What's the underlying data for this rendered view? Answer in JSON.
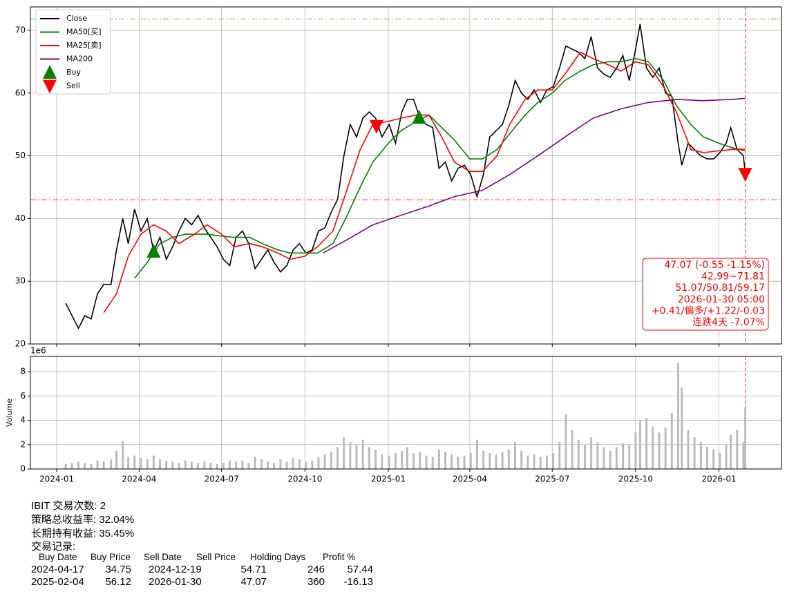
{
  "chart_data": [
    {
      "type": "line",
      "xlim": [
        "2023-12-03",
        "2026-03-11"
      ],
      "ylim": [
        20,
        73.74
      ],
      "yticks": [
        20,
        30,
        40,
        50,
        60,
        70
      ],
      "grid": true,
      "legend": "upper left",
      "series": [
        {
          "name": "Close",
          "color": "#000000",
          "style": "line",
          "x": [
            "2024-01-11",
            "2024-01-18",
            "2024-01-25",
            "2024-02-01",
            "2024-02-08",
            "2024-02-15",
            "2024-02-22",
            "2024-03-01",
            "2024-03-07",
            "2024-03-14",
            "2024-03-20",
            "2024-03-27",
            "2024-04-03",
            "2024-04-10",
            "2024-04-17",
            "2024-04-24",
            "2024-05-01",
            "2024-05-08",
            "2024-05-15",
            "2024-05-22",
            "2024-05-29",
            "2024-06-05",
            "2024-06-12",
            "2024-06-19",
            "2024-06-26",
            "2024-07-03",
            "2024-07-10",
            "2024-07-17",
            "2024-07-24",
            "2024-07-31",
            "2024-08-07",
            "2024-08-14",
            "2024-08-21",
            "2024-08-28",
            "2024-09-04",
            "2024-09-11",
            "2024-09-18",
            "2024-09-25",
            "2024-10-02",
            "2024-10-09",
            "2024-10-16",
            "2024-10-23",
            "2024-10-30",
            "2024-11-06",
            "2024-11-13",
            "2024-11-20",
            "2024-11-27",
            "2024-12-04",
            "2024-12-11",
            "2024-12-18",
            "2024-12-25",
            "2025-01-02",
            "2025-01-09",
            "2025-01-16",
            "2025-01-22",
            "2025-01-29",
            "2025-02-05",
            "2025-02-12",
            "2025-02-19",
            "2025-02-26",
            "2025-03-05",
            "2025-03-12",
            "2025-03-19",
            "2025-03-26",
            "2025-04-02",
            "2025-04-09",
            "2025-04-16",
            "2025-04-23",
            "2025-04-30",
            "2025-05-07",
            "2025-05-14",
            "2025-05-21",
            "2025-05-28",
            "2025-06-04",
            "2025-06-11",
            "2025-06-18",
            "2025-06-25",
            "2025-07-02",
            "2025-07-09",
            "2025-07-16",
            "2025-07-23",
            "2025-07-30",
            "2025-08-06",
            "2025-08-13",
            "2025-08-20",
            "2025-08-27",
            "2025-09-03",
            "2025-09-10",
            "2025-09-17",
            "2025-09-24",
            "2025-10-01",
            "2025-10-06",
            "2025-10-13",
            "2025-10-20",
            "2025-10-27",
            "2025-11-03",
            "2025-11-10",
            "2025-11-17",
            "2025-11-21",
            "2025-11-28",
            "2025-12-05",
            "2025-12-12",
            "2025-12-19",
            "2025-12-26",
            "2026-01-02",
            "2026-01-09",
            "2026-01-14",
            "2026-01-21",
            "2026-01-28",
            "2026-01-30"
          ],
          "values": [
            26.5,
            24.5,
            22.5,
            24.5,
            24,
            28,
            29.5,
            29.5,
            35,
            40,
            36,
            41.5,
            38,
            40,
            34.75,
            37,
            33.5,
            35.5,
            38,
            40,
            39,
            40.5,
            38.5,
            37,
            35.5,
            33.5,
            32.5,
            37,
            38,
            36,
            32,
            33.5,
            35,
            33,
            31.5,
            32.5,
            35,
            36,
            34.5,
            35,
            38,
            38.5,
            41,
            43,
            50,
            55,
            53,
            56,
            57,
            56,
            53,
            55,
            52,
            57,
            59,
            59,
            56,
            55,
            54.5,
            48,
            49,
            46,
            48,
            48.5,
            47,
            43.5,
            47,
            53,
            54,
            55,
            58,
            62,
            60,
            59,
            60.5,
            58.5,
            60.5,
            61,
            64,
            67.5,
            67,
            66.5,
            65.5,
            69,
            64,
            63,
            62.5,
            64,
            66,
            62,
            67,
            71,
            64,
            62.5,
            64,
            60,
            59.5,
            52,
            48.5,
            52,
            51,
            50,
            49.5,
            49.5,
            50.5,
            52,
            54.5,
            51,
            50,
            47.07
          ]
        },
        {
          "name": "MA50[买]",
          "color": "#008000",
          "style": "line",
          "x": [
            "2024-03-27",
            "2024-04-10",
            "2024-04-24",
            "2024-05-08",
            "2024-05-22",
            "2024-06-15",
            "2024-07-01",
            "2024-07-15",
            "2024-08-01",
            "2024-08-15",
            "2024-09-01",
            "2024-09-15",
            "2024-10-01",
            "2024-10-15",
            "2024-11-01",
            "2024-11-15",
            "2024-12-01",
            "2024-12-15",
            "2025-01-01",
            "2025-01-15",
            "2025-02-01",
            "2025-02-15",
            "2025-03-01",
            "2025-03-15",
            "2025-04-01",
            "2025-04-15",
            "2025-05-01",
            "2025-05-15",
            "2025-06-01",
            "2025-06-15",
            "2025-07-01",
            "2025-07-15",
            "2025-08-01",
            "2025-08-15",
            "2025-09-01",
            "2025-09-15",
            "2025-10-01",
            "2025-10-15",
            "2025-11-01",
            "2025-11-15",
            "2025-12-01",
            "2025-12-15",
            "2026-01-01",
            "2026-01-15",
            "2026-01-30"
          ],
          "values": [
            30.5,
            33,
            36,
            37,
            37.5,
            37.5,
            37.2,
            37,
            37,
            36,
            35,
            34.5,
            34.5,
            34.5,
            36,
            40,
            45,
            49,
            52,
            54,
            55.5,
            56.5,
            54.5,
            52.5,
            49.5,
            49.5,
            51,
            53.5,
            56.5,
            58.5,
            60,
            62,
            63.5,
            64.5,
            65,
            65,
            65.5,
            65,
            62,
            58,
            55,
            53,
            52,
            51.3,
            50.81
          ]
        },
        {
          "name": "MA25[卖]",
          "color": "#ff0000",
          "style": "line",
          "x": [
            "2024-02-22",
            "2024-03-07",
            "2024-03-20",
            "2024-04-03",
            "2024-04-17",
            "2024-05-01",
            "2024-05-15",
            "2024-06-01",
            "2024-06-15",
            "2024-07-01",
            "2024-07-15",
            "2024-08-01",
            "2024-08-15",
            "2024-09-01",
            "2024-09-15",
            "2024-10-01",
            "2024-10-15",
            "2024-11-01",
            "2024-11-15",
            "2024-12-01",
            "2024-12-15",
            "2025-01-01",
            "2025-01-15",
            "2025-02-01",
            "2025-02-15",
            "2025-03-01",
            "2025-03-15",
            "2025-04-01",
            "2025-04-15",
            "2025-05-01",
            "2025-05-15",
            "2025-06-01",
            "2025-06-15",
            "2025-07-01",
            "2025-07-15",
            "2025-08-01",
            "2025-08-15",
            "2025-09-01",
            "2025-09-15",
            "2025-10-01",
            "2025-10-15",
            "2025-11-01",
            "2025-11-15",
            "2025-12-01",
            "2025-12-15",
            "2026-01-01",
            "2026-01-15",
            "2026-01-30"
          ],
          "values": [
            25,
            28,
            34,
            37.5,
            39,
            38,
            36,
            37.5,
            39,
            37.5,
            35.5,
            36,
            35.5,
            34.5,
            33.5,
            34,
            35.5,
            38,
            44,
            51,
            55,
            55.5,
            56,
            56.5,
            56.5,
            53,
            49,
            47.5,
            47.5,
            50,
            55,
            59,
            60.5,
            60.5,
            63,
            66.5,
            65.5,
            64.5,
            63.5,
            65,
            64.5,
            61,
            57,
            51,
            50.5,
            50.8,
            51,
            51.07
          ]
        },
        {
          "name": "MA200",
          "color": "#800080",
          "style": "line",
          "x": [
            "2024-10-21",
            "2024-11-15",
            "2024-12-15",
            "2025-01-15",
            "2025-02-15",
            "2025-03-15",
            "2025-04-15",
            "2025-05-15",
            "2025-06-15",
            "2025-07-15",
            "2025-08-15",
            "2025-09-15",
            "2025-10-15",
            "2025-11-15",
            "2025-12-15",
            "2026-01-15",
            "2026-01-30"
          ],
          "values": [
            34.5,
            36.5,
            39,
            40.5,
            42,
            43.5,
            44.5,
            47,
            50,
            53,
            56,
            57.5,
            58.5,
            59,
            58.8,
            59,
            59.17
          ]
        },
        {
          "name": "Buy",
          "color": "#008000",
          "style": "marker-up",
          "x": [
            "2024-04-17",
            "2025-02-04"
          ],
          "values": [
            34.75,
            56.12
          ]
        },
        {
          "name": "Sell",
          "color": "#ff0000",
          "style": "marker-down",
          "x": [
            "2024-12-19",
            "2026-01-30"
          ],
          "values": [
            54.71,
            47.07
          ]
        }
      ],
      "hlines": [
        {
          "value": 71.81,
          "color": "#2ca02c"
        },
        {
          "value": 42.99,
          "color": "#ff0000"
        }
      ],
      "vline": "2026-01-30",
      "annotation": [
        "47.07 (-0.55 -1.15%)",
        "42.99~71.81",
        "51.07/50.81/59.17",
        "2026-01-30 05:00",
        "+0.41/偏多/+1.22/-0.03",
        "连跌4天 -7.07%"
      ]
    },
    {
      "type": "bar",
      "ylabel": "Volume",
      "offset_label": "1e6",
      "color": "#bbbbbb",
      "xlim": [
        "2023-12-03",
        "2026-03-11"
      ],
      "xticks": [
        {
          "value": "2024-01-01",
          "label": "2024-01"
        },
        {
          "value": "2024-04-01",
          "label": "2024-04"
        },
        {
          "value": "2024-07-01",
          "label": "2024-07"
        },
        {
          "value": "2024-10-01",
          "label": "2024-10"
        },
        {
          "value": "2025-01-01",
          "label": "2025-01"
        },
        {
          "value": "2025-04-01",
          "label": "2025-04"
        },
        {
          "value": "2025-07-01",
          "label": "2025-07"
        },
        {
          "value": "2025-10-01",
          "label": "2025-10"
        },
        {
          "value": "2026-01-01",
          "label": "2026-01"
        }
      ],
      "ylim": [
        0,
        9.25
      ],
      "yticks": [
        0,
        2,
        4,
        6,
        8
      ],
      "grid": true,
      "x": [
        "2024-01-11",
        "2024-01-18",
        "2024-01-25",
        "2024-02-01",
        "2024-02-08",
        "2024-02-15",
        "2024-02-22",
        "2024-03-01",
        "2024-03-07",
        "2024-03-14",
        "2024-03-20",
        "2024-03-27",
        "2024-04-03",
        "2024-04-10",
        "2024-04-17",
        "2024-04-24",
        "2024-05-01",
        "2024-05-08",
        "2024-05-15",
        "2024-05-22",
        "2024-05-29",
        "2024-06-05",
        "2024-06-12",
        "2024-06-19",
        "2024-06-26",
        "2024-07-03",
        "2024-07-10",
        "2024-07-17",
        "2024-07-24",
        "2024-07-31",
        "2024-08-07",
        "2024-08-14",
        "2024-08-21",
        "2024-08-28",
        "2024-09-04",
        "2024-09-11",
        "2024-09-18",
        "2024-09-25",
        "2024-10-02",
        "2024-10-09",
        "2024-10-16",
        "2024-10-23",
        "2024-10-30",
        "2024-11-06",
        "2024-11-13",
        "2024-11-20",
        "2024-11-27",
        "2024-12-04",
        "2024-12-11",
        "2024-12-18",
        "2024-12-25",
        "2025-01-02",
        "2025-01-09",
        "2025-01-16",
        "2025-01-22",
        "2025-01-29",
        "2025-02-05",
        "2025-02-12",
        "2025-02-19",
        "2025-02-26",
        "2025-03-05",
        "2025-03-12",
        "2025-03-19",
        "2025-03-26",
        "2025-04-02",
        "2025-04-09",
        "2025-04-16",
        "2025-04-23",
        "2025-04-30",
        "2025-05-07",
        "2025-05-14",
        "2025-05-21",
        "2025-05-28",
        "2025-06-04",
        "2025-06-11",
        "2025-06-18",
        "2025-06-25",
        "2025-07-02",
        "2025-07-09",
        "2025-07-16",
        "2025-07-23",
        "2025-07-30",
        "2025-08-06",
        "2025-08-13",
        "2025-08-20",
        "2025-08-27",
        "2025-09-03",
        "2025-09-10",
        "2025-09-17",
        "2025-09-24",
        "2025-10-01",
        "2025-10-06",
        "2025-10-13",
        "2025-10-20",
        "2025-10-27",
        "2025-11-03",
        "2025-11-10",
        "2025-11-17",
        "2025-11-21",
        "2025-11-28",
        "2025-12-05",
        "2025-12-12",
        "2025-12-19",
        "2025-12-26",
        "2026-01-02",
        "2026-01-09",
        "2026-01-14",
        "2026-01-21",
        "2026-01-28",
        "2026-01-30"
      ],
      "values": [
        0.4,
        0.5,
        0.6,
        0.5,
        0.4,
        0.7,
        0.6,
        0.8,
        1.5,
        2.3,
        1.0,
        1.1,
        0.9,
        0.8,
        1.1,
        0.8,
        0.7,
        0.6,
        0.5,
        0.7,
        0.6,
        0.5,
        0.6,
        0.5,
        0.4,
        0.5,
        0.7,
        0.6,
        0.7,
        0.5,
        1.0,
        0.8,
        0.6,
        0.5,
        0.8,
        0.6,
        0.9,
        0.8,
        0.6,
        0.7,
        1.0,
        1.2,
        1.4,
        1.8,
        2.6,
        2.2,
        2.0,
        2.4,
        1.8,
        1.6,
        1.2,
        1.1,
        1.3,
        1.5,
        1.8,
        1.3,
        1.4,
        1.1,
        1.0,
        1.6,
        1.4,
        1.2,
        1.0,
        1.1,
        1.3,
        2.4,
        1.5,
        1.3,
        1.2,
        1.4,
        1.6,
        2.2,
        1.5,
        1.1,
        1.2,
        1.0,
        1.1,
        1.3,
        2.2,
        4.5,
        3.2,
        2.4,
        2.0,
        2.6,
        2.2,
        1.8,
        1.5,
        1.8,
        2.1,
        2.0,
        3.0,
        4.0,
        4.2,
        3.5,
        3.0,
        3.4,
        4.6,
        8.7,
        6.7,
        3.2,
        2.6,
        2.2,
        1.8,
        1.6,
        1.3,
        2.0,
        2.8,
        3.2,
        2.2,
        5.0
      ]
    }
  ],
  "summary": {
    "line1": "IBIT 交易次数: 2",
    "line2": "策略总收益率: 32.04%",
    "line3": "长期持有收益: 35.45%",
    "line4": "交易记录:"
  },
  "trades": {
    "columns": [
      "Buy Date",
      "Buy Price",
      "Sell Date",
      "Sell Price",
      "Holding Days",
      "Profit %"
    ],
    "rows": [
      [
        "2024-04-17",
        34.75,
        "2024-12-19",
        54.71,
        246,
        57.44
      ],
      [
        "2025-02-04",
        56.12,
        "2026-01-30",
        47.07,
        360,
        -16.13
      ]
    ]
  }
}
